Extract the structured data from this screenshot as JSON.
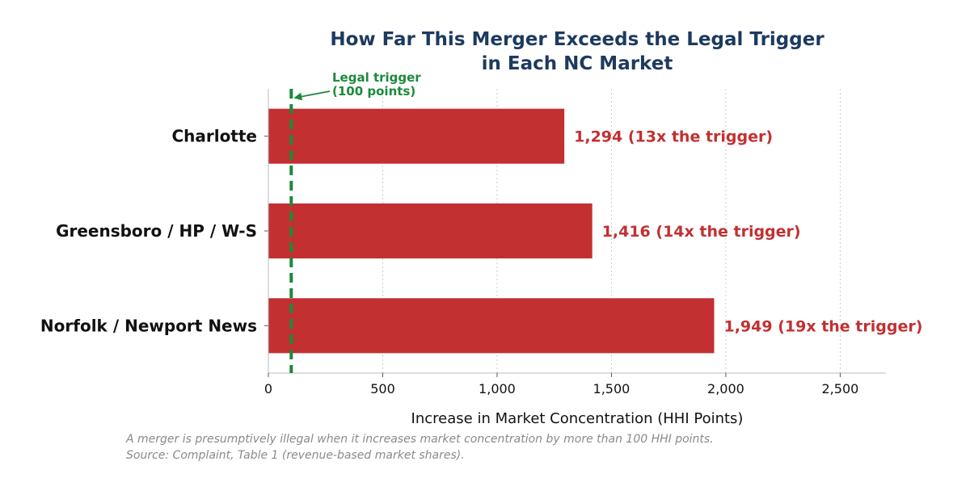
{
  "chart_data": {
    "type": "bar",
    "orientation": "horizontal",
    "title_lines": [
      "How Far This Merger Exceeds the Legal Trigger",
      "in Each NC Market"
    ],
    "categories": [
      "Charlotte",
      "Greensboro / HP / W-S",
      "Norfolk / Newport News"
    ],
    "values": [
      1294,
      1416,
      1949
    ],
    "value_labels": [
      "1,294  (13x the trigger)",
      "1,416  (14x the trigger)",
      "1,949  (19x the trigger)"
    ],
    "xlabel": "Increase in Market Concentration (HHI Points)",
    "xlim": [
      0,
      2700
    ],
    "xticks": [
      0,
      500,
      1000,
      1500,
      2000,
      2500
    ],
    "xtick_labels": [
      "0",
      "500",
      "1,000",
      "1,500",
      "2,000",
      "2,500"
    ],
    "grid": "vertical dotted",
    "threshold": {
      "value": 100,
      "label_lines": [
        "Legal trigger",
        "(100 points)"
      ]
    },
    "footnotes": [
      "A merger is presumptively illegal when it increases market concentration by more than 100 HHI points.",
      "Source: Complaint, Table 1 (revenue-based market shares)."
    ],
    "colors": {
      "bar": "#c23032",
      "threshold": "#1a8a3a",
      "title": "#1d3a5f",
      "value_label": "#c23032",
      "footnote": "#8a8a8a",
      "grid": "#cccccc",
      "axis": "#bbbbbb"
    }
  }
}
